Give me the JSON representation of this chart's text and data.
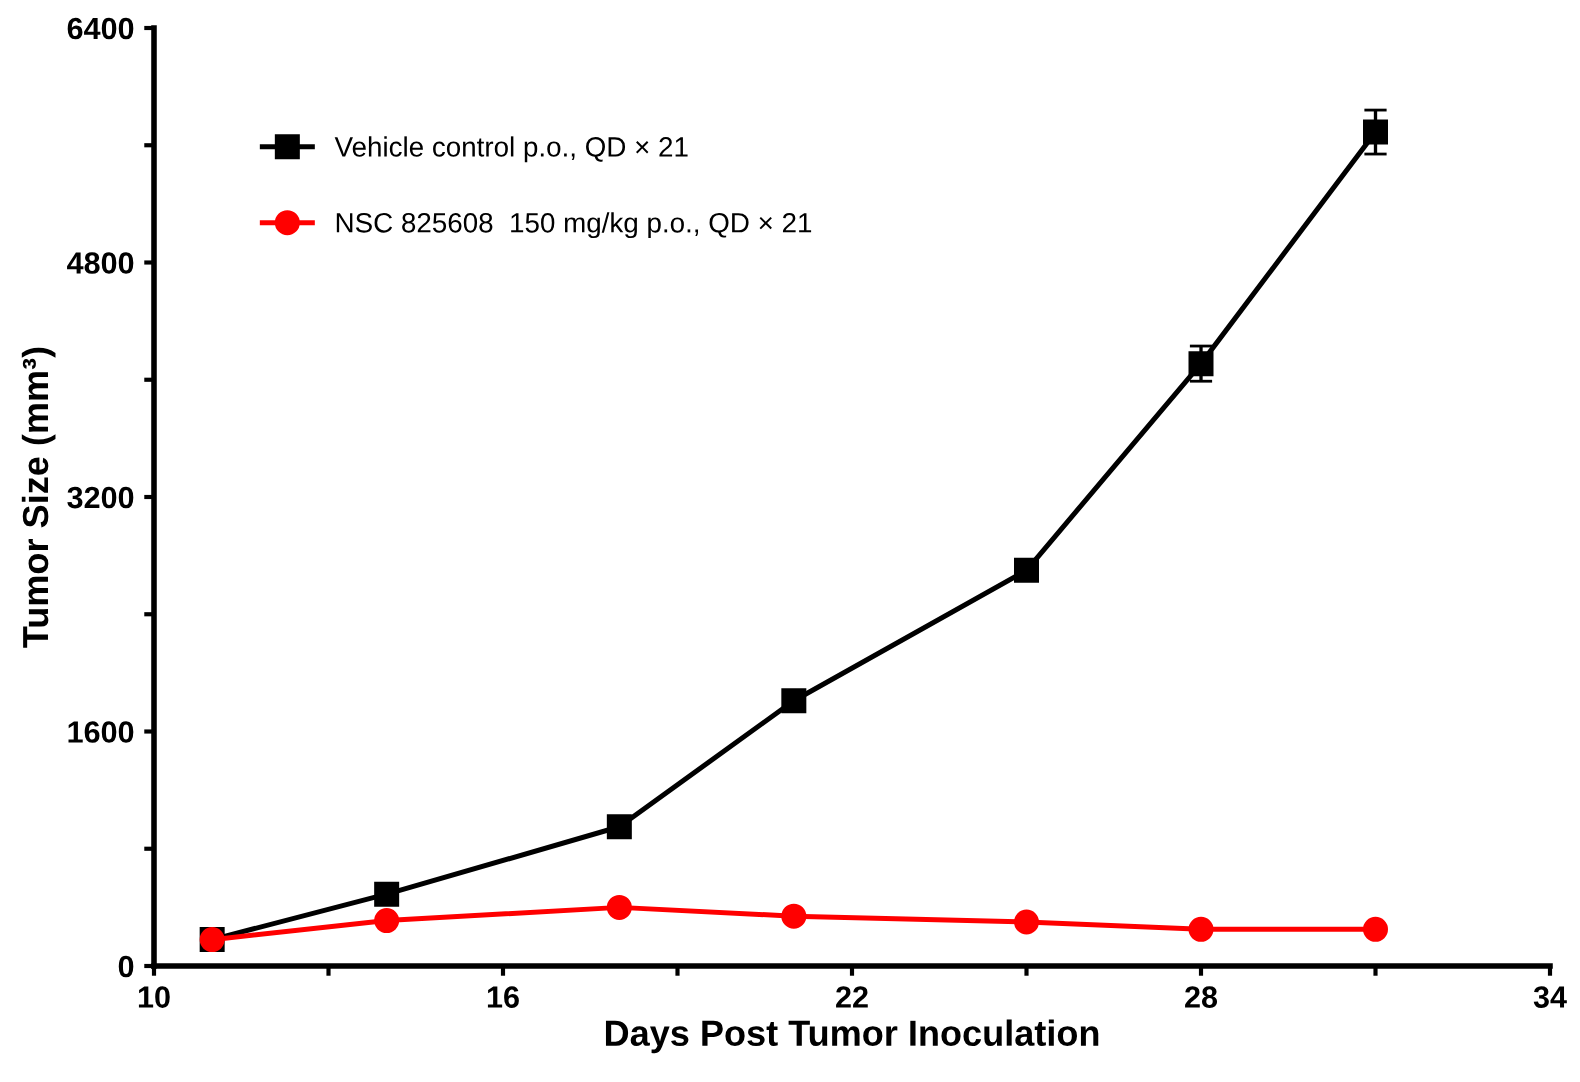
{
  "chart_data": {
    "type": "line",
    "xlabel": "Days Post Tumor Inoculation",
    "ylabel": "Tumor Size (mm³)",
    "xlim": [
      10,
      34
    ],
    "xticks": [
      10,
      {
        "value": 13,
        "label": null
      },
      16,
      {
        "value": 19,
        "label": null
      },
      22,
      {
        "value": 25,
        "label": null
      },
      28,
      {
        "value": 31,
        "label": null
      },
      34
    ],
    "ylim": [
      0,
      6400
    ],
    "yticks": [
      0,
      {
        "value": 800,
        "label": null
      },
      1600,
      {
        "value": 2400,
        "label": null
      },
      3200,
      {
        "value": 4000,
        "label": null
      },
      4800,
      {
        "value": 5600,
        "label": null
      },
      6400
    ],
    "grid": false,
    "legend": "top left",
    "series": [
      {
        "name": "Vehicle control p.o., QD × 21",
        "color": "#000000",
        "marker": "square",
        "x": [
          11,
          14,
          18,
          21,
          25,
          28,
          31
        ],
        "values": [
          180,
          490,
          950,
          1810,
          2700,
          4110,
          5690
        ],
        "errors": [
          null,
          null,
          null,
          null,
          70,
          120,
          150
        ]
      },
      {
        "name": "NSC 825608  150 mg/kg p.o., QD × 21",
        "color": "#ff0000",
        "marker": "circle",
        "x": [
          11,
          14,
          18,
          21,
          25,
          28,
          31
        ],
        "values": [
          180,
          310,
          400,
          340,
          300,
          250,
          250
        ]
      }
    ]
  }
}
